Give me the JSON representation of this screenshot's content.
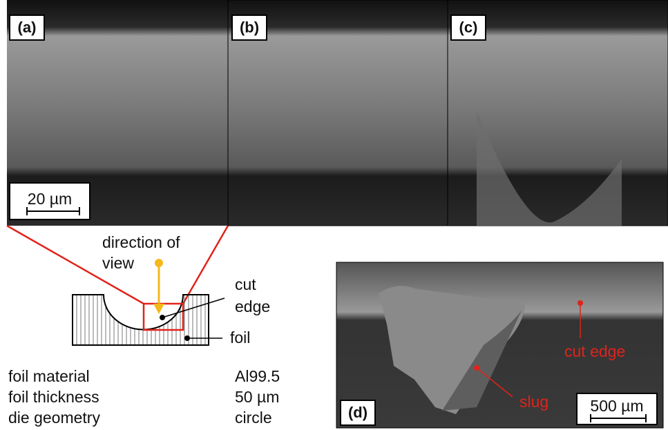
{
  "panels": [
    {
      "label": "(a)"
    },
    {
      "label": "(b)"
    },
    {
      "label": "(c)"
    },
    {
      "label": "(d)"
    }
  ],
  "scale_bars": {
    "top": "20 µm",
    "inset": "500 µm"
  },
  "schematic": {
    "direction_lines": [
      "direction of",
      "view"
    ],
    "cut_edge_lines": [
      "cut",
      "edge"
    ],
    "foil": "foil"
  },
  "properties": {
    "rows": [
      [
        "foil material",
        "Al99.5"
      ],
      [
        "foil thickness",
        "50 µm"
      ],
      [
        "die geometry",
        "circle"
      ]
    ]
  },
  "inset_annotations": {
    "cut_edge": "cut edge",
    "slug": "slug"
  }
}
